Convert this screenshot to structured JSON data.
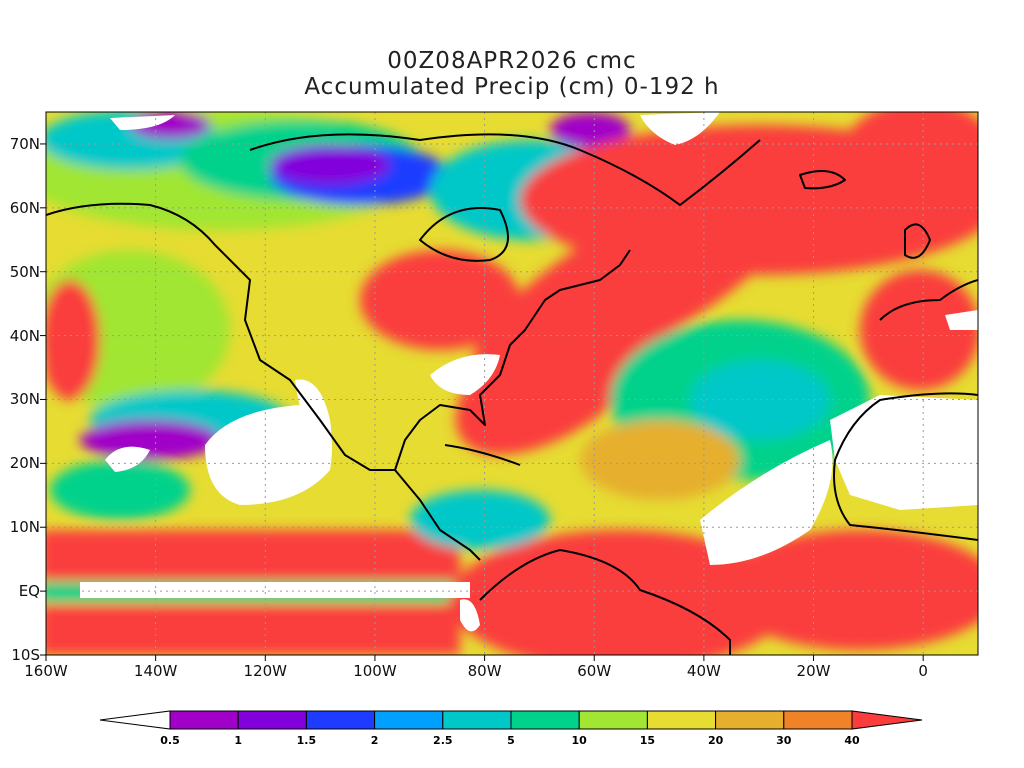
{
  "title": {
    "line1": "00Z08APR2026 cmc",
    "line2": "Accumulated Precip (cm) 0-192 h"
  },
  "map": {
    "extent": {
      "lon_min": -160,
      "lon_max": 10,
      "lat_min": -10,
      "lat_max": 75
    },
    "lat_ticks": [
      {
        "value": 70,
        "label": "70N"
      },
      {
        "value": 60,
        "label": "60N"
      },
      {
        "value": 50,
        "label": "50N"
      },
      {
        "value": 40,
        "label": "40N"
      },
      {
        "value": 30,
        "label": "30N"
      },
      {
        "value": 20,
        "label": "20N"
      },
      {
        "value": 10,
        "label": "10N"
      },
      {
        "value": 0,
        "label": "EQ"
      },
      {
        "value": -10,
        "label": "10S"
      }
    ],
    "lon_ticks": [
      {
        "value": -160,
        "label": "160W"
      },
      {
        "value": -140,
        "label": "140W"
      },
      {
        "value": -120,
        "label": "120W"
      },
      {
        "value": -100,
        "label": "100W"
      },
      {
        "value": -80,
        "label": "80W"
      },
      {
        "value": -60,
        "label": "60W"
      },
      {
        "value": -40,
        "label": "40W"
      },
      {
        "value": -20,
        "label": "20W"
      },
      {
        "value": 0,
        "label": "0"
      }
    ]
  },
  "colorbar": {
    "low_color": "#ffffff",
    "colors": [
      "#a000c8",
      "#8200dc",
      "#1e3cff",
      "#00a0ff",
      "#00c8c8",
      "#00d28c",
      "#a0e632",
      "#e6dc32",
      "#e6af2d",
      "#f08228",
      "#fa3c3c"
    ],
    "labels": [
      "0.5",
      "1",
      "1.5",
      "2",
      "2.5",
      "5",
      "10",
      "15",
      "20",
      "30",
      "40"
    ]
  }
}
